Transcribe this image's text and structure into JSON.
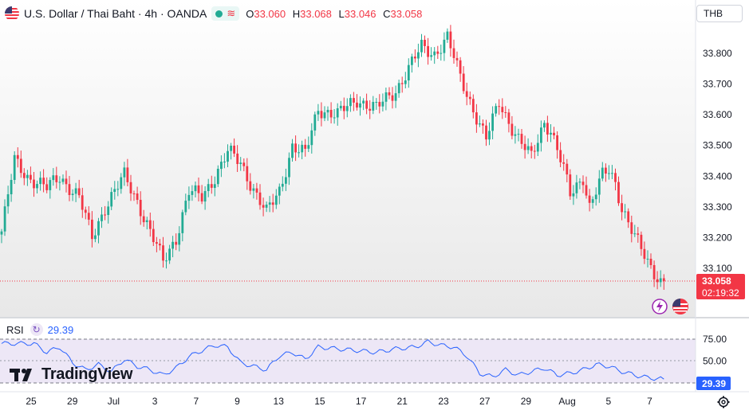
{
  "header": {
    "symbol": "U.S. Dollar / Thai Baht",
    "interval": "4h",
    "exchange": "OANDA",
    "open_label": "O",
    "open": "33.060",
    "high_label": "H",
    "high": "33.068",
    "low_label": "L",
    "low": "33.046",
    "close_label": "C",
    "close": "33.058",
    "currency_button": "THB"
  },
  "price_label": {
    "value": "33.058",
    "countdown": "02:19:32"
  },
  "rsi": {
    "name": "RSI",
    "value": "29.39",
    "levels": [
      "75.00",
      "50.00"
    ]
  },
  "branding": "TradingView",
  "icons": [
    "lightning-icon",
    "us-flag-icon",
    "gear-icon"
  ],
  "colors": {
    "up": "#22ab94",
    "down": "#f23645",
    "rsi_line": "#2962ff",
    "rsi_band": "#ede7f6"
  },
  "chart_data": [
    {
      "type": "candlestick",
      "title": "U.S. Dollar / Thai Baht · 4h · OANDA",
      "y_ticks": [
        "33.800",
        "33.700",
        "33.600",
        "33.500",
        "33.400",
        "33.300",
        "33.200",
        "33.100"
      ],
      "ylim": [
        32.96,
        33.87
      ],
      "x_ticks": [
        "25",
        "29",
        "Jul",
        "3",
        "7",
        "9",
        "13",
        "15",
        "17",
        "21",
        "23",
        "27",
        "29",
        "Aug",
        "5",
        "7"
      ],
      "close_trajectory": [
        [
          0,
          33.22
        ],
        [
          4,
          33.45
        ],
        [
          8,
          33.4
        ],
        [
          14,
          33.36
        ],
        [
          18,
          33.4
        ],
        [
          24,
          33.33
        ],
        [
          28,
          33.2
        ],
        [
          32,
          33.3
        ],
        [
          38,
          33.4
        ],
        [
          42,
          33.32
        ],
        [
          46,
          33.22
        ],
        [
          50,
          33.12
        ],
        [
          54,
          33.2
        ],
        [
          58,
          33.35
        ],
        [
          62,
          33.33
        ],
        [
          66,
          33.4
        ],
        [
          70,
          33.48
        ],
        [
          74,
          33.44
        ],
        [
          78,
          33.36
        ],
        [
          82,
          33.28
        ],
        [
          86,
          33.35
        ],
        [
          90,
          33.5
        ],
        [
          94,
          33.47
        ],
        [
          98,
          33.62
        ],
        [
          104,
          33.6
        ],
        [
          110,
          33.65
        ],
        [
          116,
          33.62
        ],
        [
          122,
          33.68
        ],
        [
          126,
          33.75
        ],
        [
          130,
          33.82
        ],
        [
          134,
          33.8
        ],
        [
          138,
          33.85
        ],
        [
          142,
          33.72
        ],
        [
          146,
          33.62
        ],
        [
          150,
          33.52
        ],
        [
          154,
          33.64
        ],
        [
          156,
          33.6
        ],
        [
          160,
          33.52
        ],
        [
          164,
          33.46
        ],
        [
          168,
          33.58
        ],
        [
          170,
          33.55
        ],
        [
          174,
          33.42
        ],
        [
          176,
          33.34
        ],
        [
          180,
          33.4
        ],
        [
          182,
          33.3
        ],
        [
          186,
          33.4
        ],
        [
          188,
          33.42
        ],
        [
          190,
          33.38
        ],
        [
          192,
          33.3
        ],
        [
          196,
          33.2
        ],
        [
          200,
          33.12
        ],
        [
          204,
          33.06
        ],
        [
          205,
          33.058
        ]
      ],
      "last": 33.058
    },
    {
      "type": "line",
      "title": "RSI",
      "y_ticks": [
        "75.00",
        "50.00"
      ],
      "bands": [
        30,
        70
      ],
      "ylim": [
        20,
        80
      ],
      "series": [
        {
          "name": "RSI",
          "points": [
            [
              0,
              70
            ],
            [
              6,
              70
            ],
            [
              10,
              70
            ],
            [
              14,
              60
            ],
            [
              18,
              66
            ],
            [
              22,
              48
            ],
            [
              26,
              40
            ],
            [
              30,
              46
            ],
            [
              34,
              38
            ],
            [
              38,
              52
            ],
            [
              42,
              44
            ],
            [
              46,
              40
            ],
            [
              50,
              34
            ],
            [
              54,
              42
            ],
            [
              58,
              55
            ],
            [
              62,
              62
            ],
            [
              66,
              68
            ],
            [
              70,
              66
            ],
            [
              74,
              48
            ],
            [
              78,
              44
            ],
            [
              82,
              40
            ],
            [
              86,
              56
            ],
            [
              90,
              60
            ],
            [
              94,
              52
            ],
            [
              98,
              66
            ],
            [
              104,
              64
            ],
            [
              110,
              62
            ],
            [
              116,
              60
            ],
            [
              122,
              64
            ],
            [
              128,
              66
            ],
            [
              132,
              72
            ],
            [
              136,
              68
            ],
            [
              140,
              66
            ],
            [
              144,
              56
            ],
            [
              148,
              36
            ],
            [
              152,
              32
            ],
            [
              156,
              40
            ],
            [
              160,
              34
            ],
            [
              164,
              38
            ],
            [
              168,
              42
            ],
            [
              172,
              34
            ],
            [
              176,
              36
            ],
            [
              180,
              40
            ],
            [
              184,
              46
            ],
            [
              188,
              44
            ],
            [
              192,
              38
            ],
            [
              196,
              34
            ],
            [
              200,
              31
            ],
            [
              205,
              29.39
            ]
          ]
        }
      ]
    }
  ]
}
